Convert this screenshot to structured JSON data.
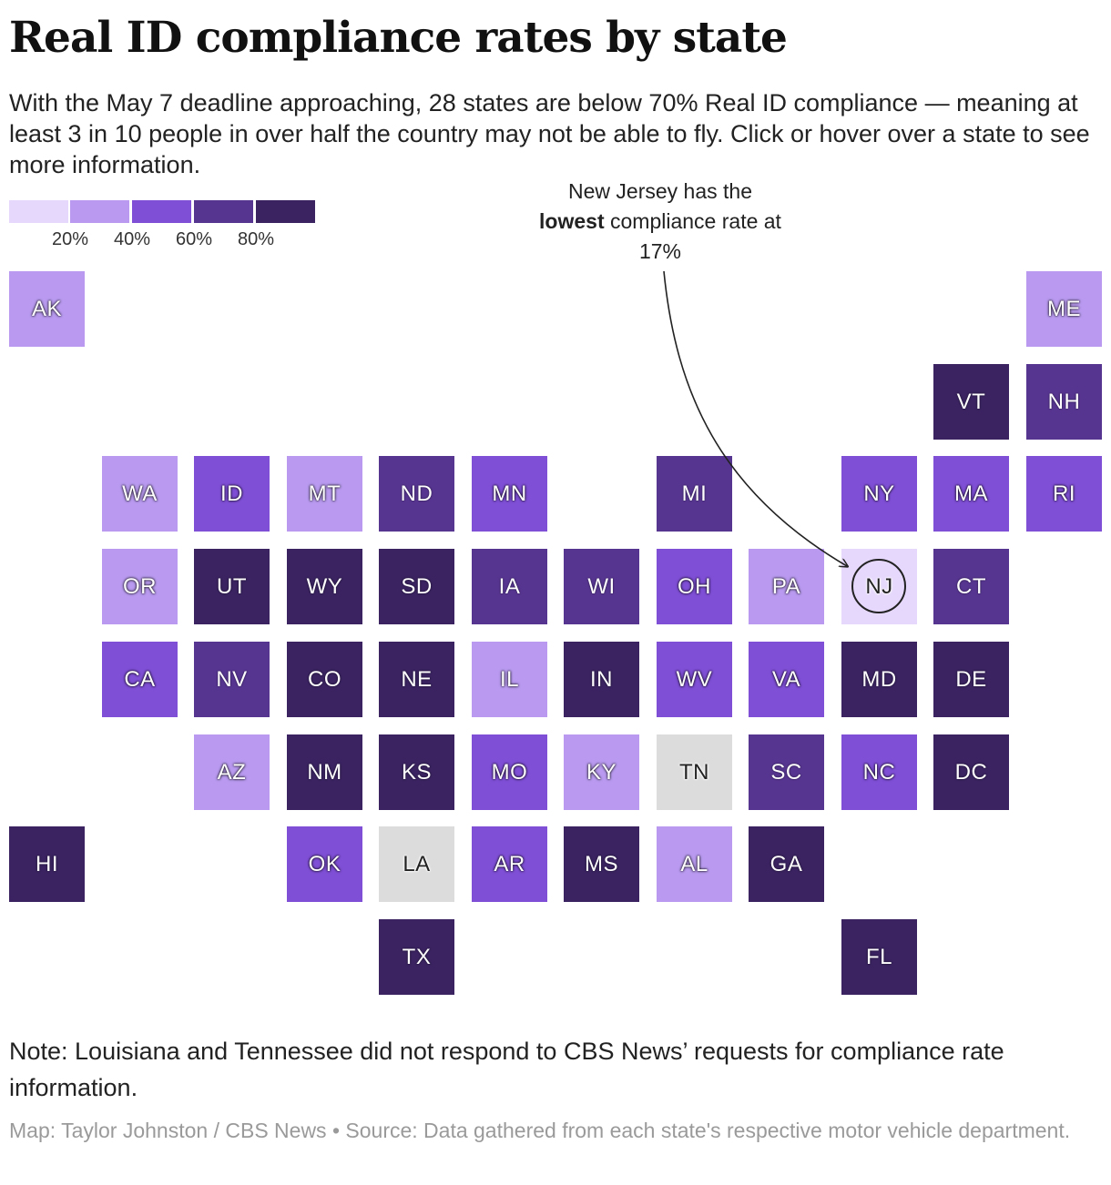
{
  "title": "Real ID compliance rates by state",
  "subtitle": "With the May 7 deadline approaching, 28 states are below 70% Real ID compliance — meaning at least 3 in 10 people in over half the country may not be able to fly. Click or hover over a state to see more information.",
  "legend": {
    "colors": [
      "#e6d8fc",
      "#b99af0",
      "#7f4fd6",
      "#563590",
      "#3a2360"
    ],
    "ticks": [
      "20%",
      "40%",
      "60%",
      "80%"
    ]
  },
  "annotation": {
    "before": "New Jersey has the",
    "bold": "lowest",
    "after": "compliance rate at 17%"
  },
  "bins": {
    "b0": "#e6d8fc",
    "b1": "#b99af0",
    "b2": "#7f4fd6",
    "b3": "#563590",
    "b4": "#3a2360",
    "nodata": "#dcdcdc"
  },
  "states": [
    {
      "abbr": "AK",
      "bin": "b1"
    },
    {
      "abbr": "ME",
      "bin": "b1"
    },
    {
      "abbr": "VT",
      "bin": "b4"
    },
    {
      "abbr": "NH",
      "bin": "b3"
    },
    {
      "abbr": "WA",
      "bin": "b1"
    },
    {
      "abbr": "ID",
      "bin": "b2"
    },
    {
      "abbr": "MT",
      "bin": "b1"
    },
    {
      "abbr": "ND",
      "bin": "b3"
    },
    {
      "abbr": "MN",
      "bin": "b2"
    },
    {
      "abbr": "MI",
      "bin": "b3"
    },
    {
      "abbr": "NY",
      "bin": "b2"
    },
    {
      "abbr": "MA",
      "bin": "b2"
    },
    {
      "abbr": "RI",
      "bin": "b2"
    },
    {
      "abbr": "OR",
      "bin": "b1"
    },
    {
      "abbr": "UT",
      "bin": "b4"
    },
    {
      "abbr": "WY",
      "bin": "b4"
    },
    {
      "abbr": "SD",
      "bin": "b4"
    },
    {
      "abbr": "IA",
      "bin": "b3"
    },
    {
      "abbr": "WI",
      "bin": "b3"
    },
    {
      "abbr": "OH",
      "bin": "b2"
    },
    {
      "abbr": "PA",
      "bin": "b1"
    },
    {
      "abbr": "NJ",
      "bin": "b0"
    },
    {
      "abbr": "CT",
      "bin": "b3"
    },
    {
      "abbr": "CA",
      "bin": "b2"
    },
    {
      "abbr": "NV",
      "bin": "b3"
    },
    {
      "abbr": "CO",
      "bin": "b4"
    },
    {
      "abbr": "NE",
      "bin": "b4"
    },
    {
      "abbr": "IL",
      "bin": "b1"
    },
    {
      "abbr": "IN",
      "bin": "b4"
    },
    {
      "abbr": "WV",
      "bin": "b2"
    },
    {
      "abbr": "VA",
      "bin": "b2"
    },
    {
      "abbr": "MD",
      "bin": "b4"
    },
    {
      "abbr": "DE",
      "bin": "b4"
    },
    {
      "abbr": "AZ",
      "bin": "b1"
    },
    {
      "abbr": "NM",
      "bin": "b4"
    },
    {
      "abbr": "KS",
      "bin": "b4"
    },
    {
      "abbr": "MO",
      "bin": "b2"
    },
    {
      "abbr": "KY",
      "bin": "b1"
    },
    {
      "abbr": "TN",
      "bin": "nodata"
    },
    {
      "abbr": "SC",
      "bin": "b3"
    },
    {
      "abbr": "NC",
      "bin": "b2"
    },
    {
      "abbr": "DC",
      "bin": "b4"
    },
    {
      "abbr": "HI",
      "bin": "b4"
    },
    {
      "abbr": "OK",
      "bin": "b2"
    },
    {
      "abbr": "LA",
      "bin": "nodata"
    },
    {
      "abbr": "AR",
      "bin": "b2"
    },
    {
      "abbr": "MS",
      "bin": "b4"
    },
    {
      "abbr": "AL",
      "bin": "b1"
    },
    {
      "abbr": "GA",
      "bin": "b4"
    },
    {
      "abbr": "TX",
      "bin": "b4"
    },
    {
      "abbr": "FL",
      "bin": "b4"
    }
  ],
  "note": "Note: Louisiana and Tennessee did not respond to CBS News’ requests for compliance rate information.",
  "credit": "Map: Taylor Johnston / CBS News • Source: Data gathered from each state's respective motor vehicle department."
}
